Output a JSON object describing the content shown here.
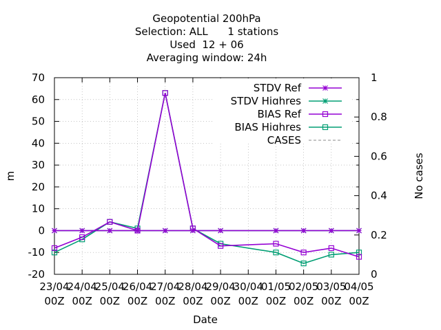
{
  "chart_data": {
    "type": "line",
    "title_lines": [
      "Geopotential 200hPa",
      "Selection: ALL      1 stations",
      "Used  12 + 06",
      "Averaging window: 24h"
    ],
    "xlabel": "Date",
    "ylabel": "m",
    "y2label": "No cases",
    "ylim": [
      -20,
      70
    ],
    "y_ticks": [
      -20,
      -10,
      0,
      10,
      20,
      30,
      40,
      50,
      60,
      70
    ],
    "y2lim": [
      0,
      1
    ],
    "y2_ticks": [
      "0",
      "0.2",
      "0.4",
      "0.6",
      "0.8",
      "1"
    ],
    "categories": [
      [
        "23/04",
        "00Z"
      ],
      [
        "24/04",
        "00Z"
      ],
      [
        "25/04",
        "00Z"
      ],
      [
        "26/04",
        "00Z"
      ],
      [
        "27/04",
        "00Z"
      ],
      [
        "28/04",
        "00Z"
      ],
      [
        "29/04",
        "00Z"
      ],
      [
        "30/04",
        "00Z"
      ],
      [
        "01/05",
        "00Z"
      ],
      [
        "02/05",
        "00Z"
      ],
      [
        "03/05",
        "00Z"
      ],
      [
        "04/05",
        "00Z"
      ]
    ],
    "grid": true,
    "legend_position": "top-right",
    "series": [
      {
        "name": "STDV Ref",
        "color": "#9400d3",
        "marker": "star",
        "dashed": false,
        "x": [
          0,
          1,
          2,
          3,
          4,
          5,
          6,
          8,
          9,
          10,
          11
        ],
        "values": [
          0,
          0,
          0,
          0,
          0,
          0,
          0,
          0,
          0,
          0,
          0
        ]
      },
      {
        "name": "STDV Highres",
        "color": "#009e73",
        "marker": "star",
        "dashed": false,
        "x": [
          0,
          1,
          2,
          3,
          4,
          5,
          6,
          8,
          9,
          10,
          11
        ],
        "values": [
          0,
          0,
          0,
          0,
          0,
          0,
          0,
          0,
          0,
          0,
          0
        ]
      },
      {
        "name": "BIAS Ref",
        "color": "#9400d3",
        "marker": "square",
        "dashed": false,
        "x": [
          0,
          1,
          2,
          3,
          4,
          5,
          6,
          8,
          9,
          10,
          11
        ],
        "values": [
          -8,
          -3,
          4,
          0,
          63,
          1,
          -7,
          -6,
          -10,
          -8,
          -12
        ]
      },
      {
        "name": "BIAS Highres",
        "color": "#009e73",
        "marker": "square",
        "dashed": false,
        "x": [
          0,
          1,
          2,
          3,
          4,
          5,
          6,
          8,
          9,
          10,
          11
        ],
        "values": [
          -10,
          -4,
          4,
          1,
          63,
          1,
          -6,
          -10,
          -15,
          -11,
          -10
        ]
      },
      {
        "name": "CASES",
        "color": "#888888",
        "marker": "none",
        "dashed": true,
        "x": [],
        "values": []
      }
    ]
  }
}
